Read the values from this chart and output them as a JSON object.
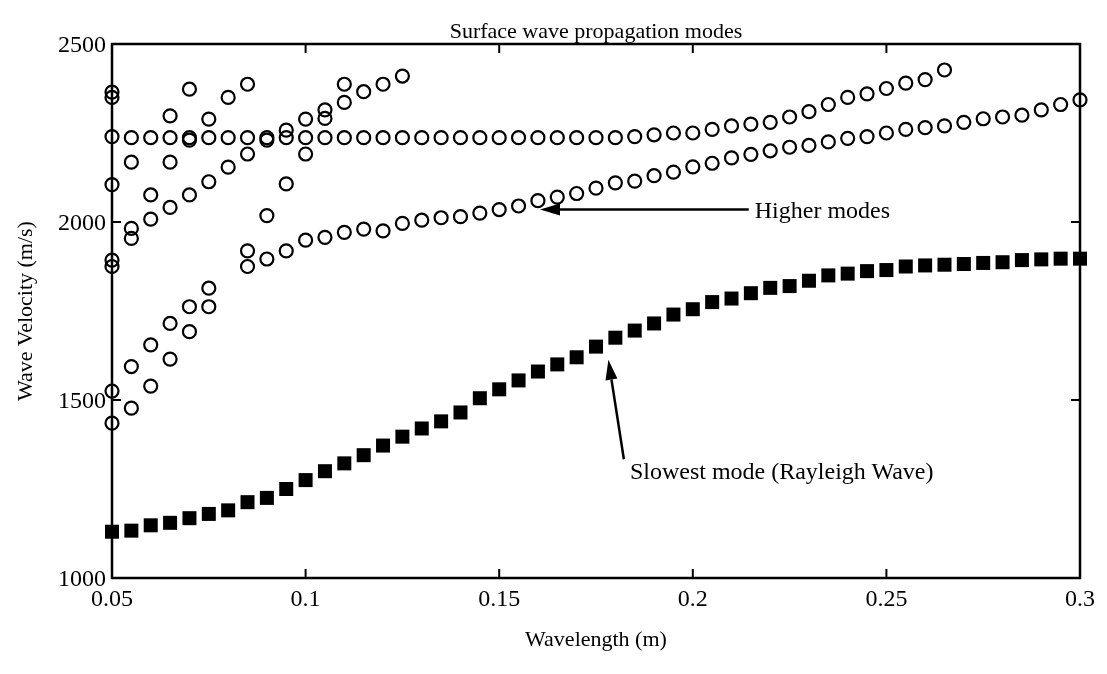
{
  "chart_data": {
    "type": "scatter",
    "title": "Surface wave propagation modes",
    "xlabel": "Wavelength (m)",
    "ylabel": "Wave Velocity (m/s)",
    "xlim": [
      0.05,
      0.3
    ],
    "xticks": [
      0.05,
      0.1,
      0.15,
      0.2,
      0.25,
      0.3
    ],
    "ylim": [
      1000,
      2500
    ],
    "yticks": [
      1000,
      1500,
      2000,
      2500
    ],
    "grid": false,
    "series": [
      {
        "color": "#000000",
        "marker": "square",
        "x": [
          0.05,
          0.055,
          0.06,
          0.065,
          0.07,
          0.075,
          0.08,
          0.085,
          0.09,
          0.095,
          0.1,
          0.105,
          0.11,
          0.115,
          0.12,
          0.125,
          0.13,
          0.135,
          0.14,
          0.145,
          0.15,
          0.155,
          0.16,
          0.165,
          0.17,
          0.175,
          0.18,
          0.185,
          0.19,
          0.195,
          0.2,
          0.205,
          0.21,
          0.215,
          0.22,
          0.225,
          0.23,
          0.235,
          0.24,
          0.245,
          0.25,
          0.255,
          0.26,
          0.265,
          0.27,
          0.275,
          0.28,
          0.285,
          0.29,
          0.295,
          0.3
        ],
        "values": [
          1130,
          1133,
          1148,
          1155,
          1168,
          1180,
          1190,
          1213,
          1225,
          1250,
          1275,
          1300,
          1322,
          1345,
          1372,
          1397,
          1420,
          1440,
          1465,
          1505,
          1530,
          1555,
          1580,
          1600,
          1620,
          1650,
          1675,
          1695,
          1715,
          1740,
          1755,
          1775,
          1785,
          1800,
          1815,
          1820,
          1835,
          1850,
          1855,
          1862,
          1865,
          1875,
          1878,
          1880,
          1882,
          1885,
          1887,
          1893,
          1895,
          1897,
          1897
        ]
      },
      {
        "color": "#000000",
        "marker": "circle",
        "x": [
          0.05,
          0.055,
          0.06,
          0.065,
          0.07,
          0.075,
          0.08,
          0.085,
          0.09,
          0.095,
          0.1,
          0.105,
          0.11,
          0.115,
          0.12,
          0.125,
          0.13,
          0.135,
          0.14,
          0.145,
          0.15,
          0.155,
          0.16,
          0.165,
          0.17,
          0.175,
          0.18,
          0.185,
          0.19,
          0.195,
          0.2,
          0.205,
          0.21,
          0.215,
          0.22,
          0.225,
          0.23,
          0.235,
          0.24,
          0.245,
          0.25,
          0.255,
          0.26,
          0.265
        ],
        "values": [
          2240,
          2237,
          2237,
          2237,
          2237,
          2237,
          2237,
          2237,
          2237,
          2237,
          2237,
          2237,
          2237,
          2237,
          2237,
          2237,
          2237,
          2237,
          2237,
          2237,
          2237,
          2237,
          2237,
          2237,
          2237,
          2237,
          2237,
          2240,
          2245,
          2250,
          2250,
          2260,
          2270,
          2275,
          2280,
          2295,
          2310,
          2330,
          2350,
          2360,
          2375,
          2390,
          2400,
          2427
        ]
      },
      {
        "color": "#000000",
        "marker": "circle",
        "x": [
          0.05,
          0.05,
          0.05,
          0.05,
          0.05,
          0.05,
          0.05,
          0.055,
          0.055,
          0.055,
          0.055,
          0.055,
          0.06,
          0.06,
          0.06,
          0.06,
          0.065,
          0.065,
          0.065,
          0.065,
          0.065,
          0.07,
          0.07,
          0.07,
          0.07,
          0.07,
          0.075,
          0.075,
          0.075,
          0.075,
          0.08,
          0.08,
          0.085,
          0.085,
          0.085,
          0.085,
          0.09,
          0.09,
          0.09,
          0.095,
          0.095,
          0.095,
          0.1,
          0.1,
          0.1,
          0.105,
          0.105,
          0.105,
          0.11,
          0.11,
          0.11,
          0.115,
          0.115,
          0.12,
          0.12,
          0.125,
          0.125
        ],
        "values": [
          2365,
          2350,
          2105,
          1893,
          1875,
          1525,
          1435,
          2168,
          1982,
          1954,
          1594,
          1477,
          2076,
          2008,
          1655,
          1539,
          2298,
          2168,
          2041,
          1715,
          1615,
          2373,
          2230,
          2076,
          1762,
          1692,
          2289,
          2113,
          1814,
          1762,
          2350,
          2154,
          2387,
          2191,
          1919,
          1875,
          2230,
          2018,
          1896,
          2258,
          2107,
          1919,
          2289,
          2191,
          1949,
          2315,
          2291,
          1957,
          2387,
          2336,
          1971,
          2366,
          1980,
          2387,
          1975,
          2410,
          1996
        ]
      },
      {
        "color": "#000000",
        "marker": "circle",
        "x": [
          0.13,
          0.135,
          0.14,
          0.145,
          0.15,
          0.155,
          0.16,
          0.165,
          0.17,
          0.175,
          0.18,
          0.185,
          0.19,
          0.195,
          0.2,
          0.205,
          0.21,
          0.215,
          0.22,
          0.225,
          0.23,
          0.235,
          0.24,
          0.245,
          0.25,
          0.255,
          0.26,
          0.265,
          0.27,
          0.275,
          0.28,
          0.285,
          0.29,
          0.295,
          0.3
        ],
        "values": [
          2005,
          2012,
          2015,
          2025,
          2035,
          2045,
          2060,
          2070,
          2080,
          2095,
          2110,
          2115,
          2130,
          2140,
          2155,
          2165,
          2180,
          2190,
          2200,
          2210,
          2215,
          2225,
          2235,
          2240,
          2250,
          2260,
          2265,
          2270,
          2280,
          2290,
          2295,
          2300,
          2315,
          2330,
          2343
        ]
      }
    ],
    "annotations": [
      "Higher modes",
      "Slowest mode (Rayleigh Wave)"
    ]
  }
}
